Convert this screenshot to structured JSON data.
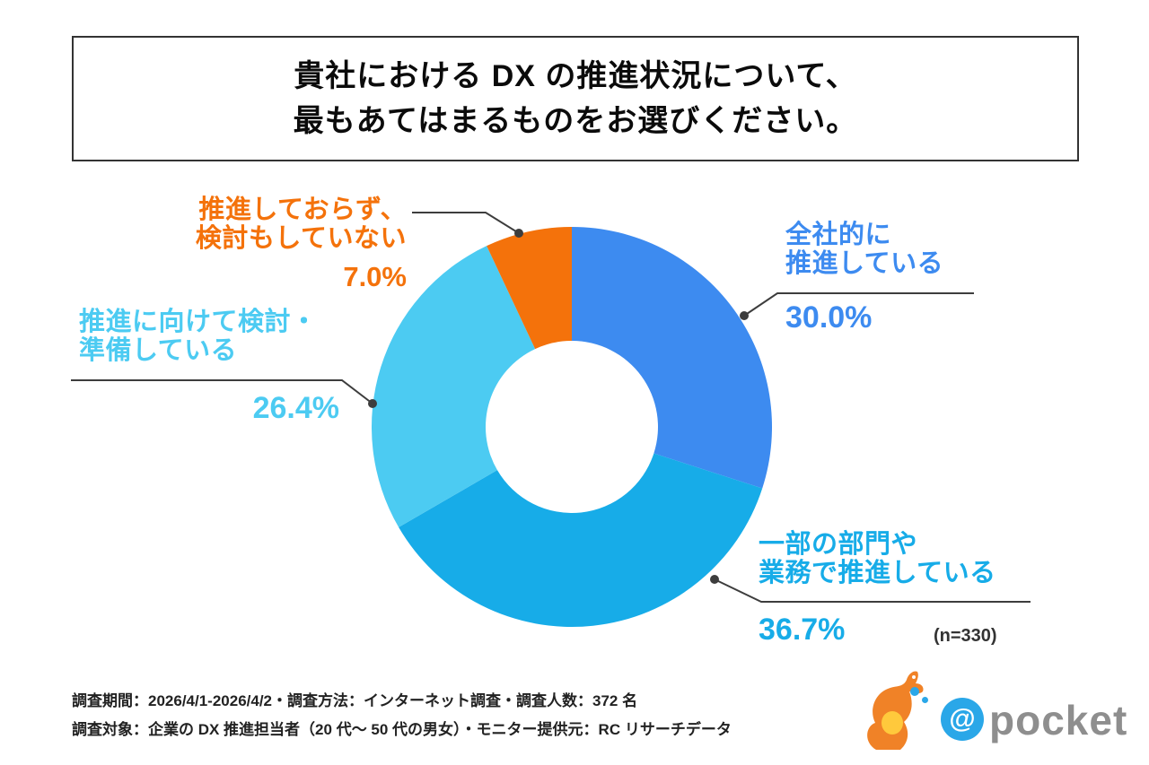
{
  "title": {
    "lines": [
      "貴社における DX の推進状況について、",
      "最もあてはまるものをお選びください。"
    ]
  },
  "chart_data": {
    "type": "pie",
    "style": "donut",
    "start_angle_deg": 0,
    "direction": "clockwise",
    "unit": "%",
    "n_label": "(n=330)",
    "segments": [
      {
        "label": "全社的に推進している",
        "label_lines": [
          "全社的に",
          "推進している"
        ],
        "value": 30.0,
        "pct_label": "30.0%",
        "color": "#3D8BF0"
      },
      {
        "label": "一部の部門や業務で推進している",
        "label_lines": [
          "一部の部門や",
          "業務で推進している"
        ],
        "value": 36.7,
        "pct_label": "36.7%",
        "color": "#17ACE8"
      },
      {
        "label": "推進に向けて検討・準備している",
        "label_lines": [
          "推進に向けて検討・",
          "準備している"
        ],
        "value": 26.4,
        "pct_label": "26.4%",
        "color": "#4CCBF2"
      },
      {
        "label": "推進しておらず、検討もしていない",
        "label_lines": [
          "推進しておらず、",
          "検討もしていない"
        ],
        "value": 7.0,
        "pct_label": "7.0%",
        "color": "#F4720B"
      }
    ]
  },
  "survey_notes": {
    "line1": "調査期間：2026/4/1-2026/4/2・調査方法：インターネット調査・調査人数：372 名",
    "line2": "調査対象：企業の DX 推進担当者（20 代〜 50 代の男女）・モニター提供元：RC リサーチデータ"
  },
  "logo": {
    "at_symbol": "@",
    "wordmark": "pocket"
  }
}
